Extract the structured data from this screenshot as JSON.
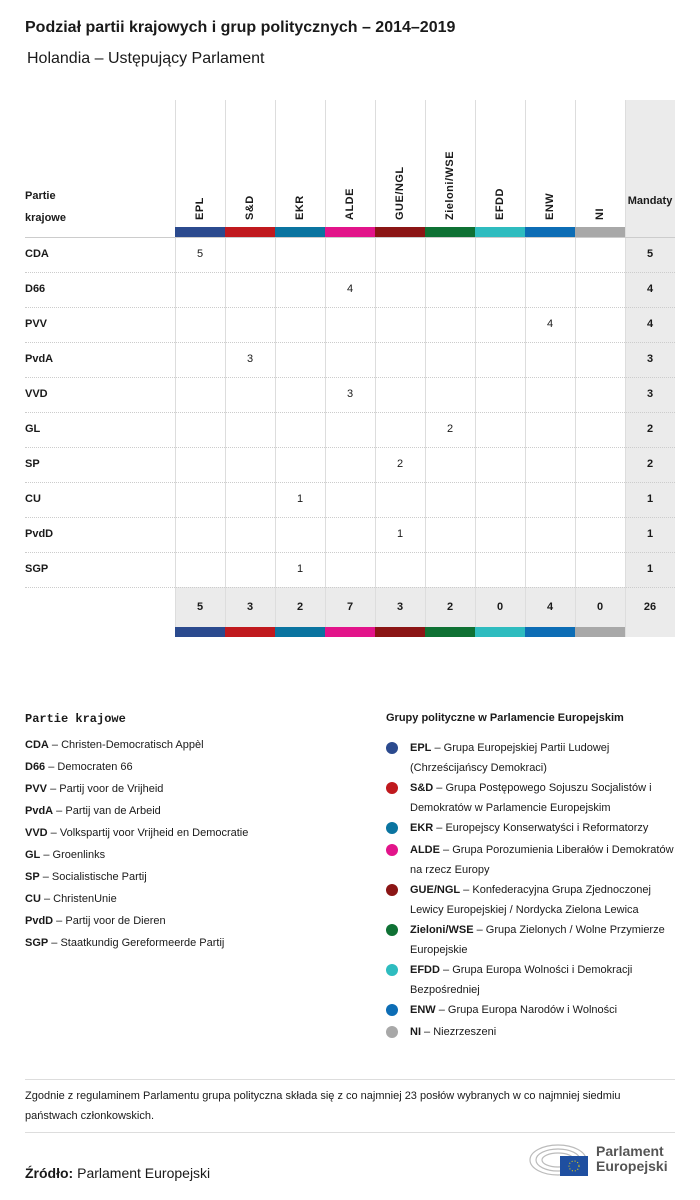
{
  "header": {
    "title": "Podział partii krajowych i grup politycznych – 2014–2019",
    "subtitle": "Holandia – Ustępujący Parlament"
  },
  "chart_data": {
    "type": "table",
    "row_header": "Partie krajowe",
    "total_header": "Mandaty",
    "groups": [
      {
        "name": "EPL",
        "color": "#2b4a8e"
      },
      {
        "name": "S&D",
        "color": "#c0191e"
      },
      {
        "name": "EKR",
        "color": "#0a74a0"
      },
      {
        "name": "ALDE",
        "color": "#e2148a"
      },
      {
        "name": "GUE/NGL",
        "color": "#8b1515"
      },
      {
        "name": "Zieloni/WSE",
        "color": "#0f7134"
      },
      {
        "name": "EFDD",
        "color": "#2ebcbf"
      },
      {
        "name": "ENW",
        "color": "#0d6db5"
      },
      {
        "name": "NI",
        "color": "#a8a8a8"
      }
    ],
    "rows": [
      {
        "party": "CDA",
        "group": "EPL",
        "seats": 5,
        "total": 5
      },
      {
        "party": "D66",
        "group": "ALDE",
        "seats": 4,
        "total": 4
      },
      {
        "party": "PVV",
        "group": "ENW",
        "seats": 4,
        "total": 4
      },
      {
        "party": "PvdA",
        "group": "S&D",
        "seats": 3,
        "total": 3
      },
      {
        "party": "VVD",
        "group": "ALDE",
        "seats": 3,
        "total": 3
      },
      {
        "party": "GL",
        "group": "Zieloni/WSE",
        "seats": 2,
        "total": 2
      },
      {
        "party": "SP",
        "group": "GUE/NGL",
        "seats": 2,
        "total": 2
      },
      {
        "party": "CU",
        "group": "EKR",
        "seats": 1,
        "total": 1
      },
      {
        "party": "PvdD",
        "group": "GUE/NGL",
        "seats": 1,
        "total": 1
      },
      {
        "party": "SGP",
        "group": "EKR",
        "seats": 1,
        "total": 1
      }
    ],
    "group_totals": [
      5,
      3,
      2,
      7,
      3,
      2,
      0,
      4,
      0
    ],
    "grand_total": 26
  },
  "legend": {
    "parties_title": "Partie krajowe",
    "parties": [
      {
        "abbr": "CDA",
        "name": "Christen-Democratisch Appèl"
      },
      {
        "abbr": "D66",
        "name": "Democraten 66"
      },
      {
        "abbr": "PVV",
        "name": "Partij voor de Vrijheid"
      },
      {
        "abbr": "PvdA",
        "name": "Partij van de Arbeid"
      },
      {
        "abbr": "VVD",
        "name": "Volkspartij voor Vrijheid en Democratie"
      },
      {
        "abbr": "GL",
        "name": "Groenlinks"
      },
      {
        "abbr": "SP",
        "name": "Socialistische Partij"
      },
      {
        "abbr": "CU",
        "name": "ChristenUnie"
      },
      {
        "abbr": "PvdD",
        "name": "Partij voor de Dieren"
      },
      {
        "abbr": "SGP",
        "name": "Staatkundig Gereformeerde Partij"
      }
    ],
    "groups_title": "Grupy polityczne w Parlamencie Europejskim",
    "groups": [
      {
        "abbr": "EPL",
        "name": "Grupa Europejskiej Partii Ludowej (Chrześcijańscy Demokraci)"
      },
      {
        "abbr": "S&D",
        "name": "Grupa Postępowego Sojuszu Socjalistów i Demokratów w Parlamencie Europejskim"
      },
      {
        "abbr": "EKR",
        "name": "Europejscy Konserwatyści i Reformatorzy"
      },
      {
        "abbr": "ALDE",
        "name": "Grupa Porozumienia Liberałów i Demokratów na rzecz Europy"
      },
      {
        "abbr": "GUE/NGL",
        "name": "Konfederacyjna Grupa Zjednoczonej Lewicy Europejskiej / Nordycka Zielona Lewica"
      },
      {
        "abbr": "Zieloni/WSE",
        "name": "Grupa Zielonych / Wolne Przymierze Europejskie"
      },
      {
        "abbr": "EFDD",
        "name": "Grupa Europa Wolności i Demokracji Bezpośredniej"
      },
      {
        "abbr": "ENW",
        "name": "Grupa Europa Narodów i Wolności"
      },
      {
        "abbr": "NI",
        "name": "Niezrzeszeni"
      }
    ]
  },
  "footer": {
    "note": "Zgodnie z regulaminem Parlamentu grupa polityczna składa się z co najmniej 23 posłów wybranych w co najmniej siedmiu państwach członkowskich.",
    "source_label": "Źródło:",
    "source": "Parlament Europejski",
    "logo_line1": "Parlament",
    "logo_line2": "Europejski"
  }
}
